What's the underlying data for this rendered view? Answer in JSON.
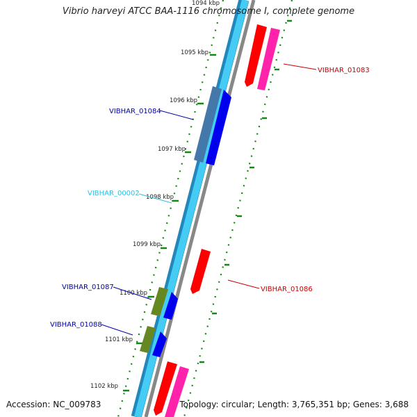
{
  "title": "Vibrio harveyi ATCC BAA-1116 chromosome I, complete genome",
  "footer": {
    "accession": "Accession: NC_009783",
    "summary": "Topology: circular; Length: 3,765,351 bp; Genes: 3,688"
  },
  "tick_labels": [
    "1094 kbp",
    "1095 kbp",
    "1096 kbp",
    "1097 kbp",
    "1098 kbp",
    "1099 kbp",
    "1100 kbp",
    "1101 kbp",
    "1102 kbp"
  ],
  "genes": [
    {
      "label": "VIBHAR_01083",
      "color": "#cc0000"
    },
    {
      "label": "VIBHAR_01084",
      "color": "#0000aa"
    },
    {
      "label": "VIBHAR_00002",
      "color": "#33bbdd"
    },
    {
      "label": "VIBHAR_01086",
      "color": "#cc0000"
    },
    {
      "label": "VIBHAR_01087",
      "color": "#0000aa"
    },
    {
      "label": "VIBHAR_01088",
      "color": "#0000aa"
    }
  ],
  "colors": {
    "backbone_cyan": "#44ccf5",
    "backbone_dark": "#2288bb",
    "backbone_gray": "#888888",
    "tick_green": "#118811",
    "cds_red": "#ff0000",
    "cds_pink": "#ff22aa",
    "cds_blue": "#0000ee",
    "cds_steelblue": "#4477aa",
    "cds_olive": "#668822"
  }
}
